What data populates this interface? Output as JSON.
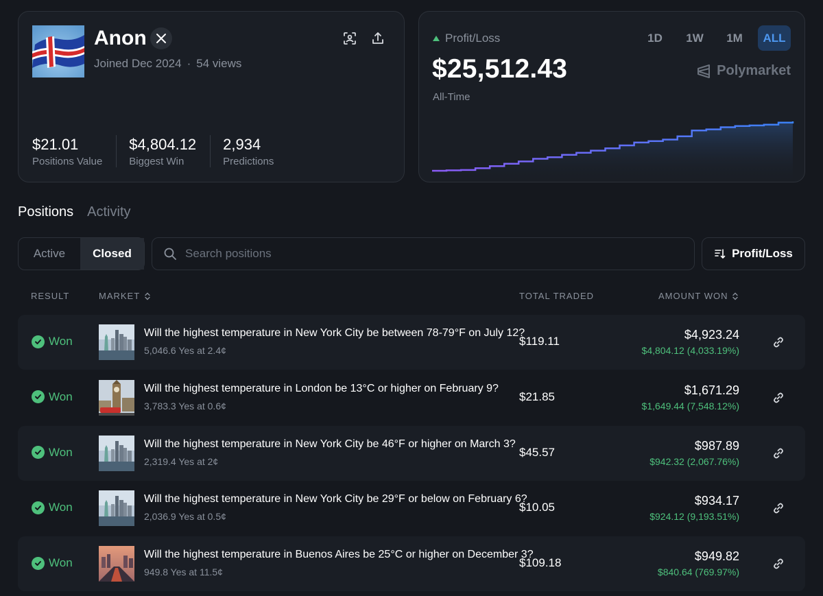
{
  "profile": {
    "name": "Anon",
    "joined": "Joined Dec 2024",
    "separator": "·",
    "views": "54 views",
    "stats": [
      {
        "value": "$21.01",
        "label": "Positions Value"
      },
      {
        "value": "$4,804.12",
        "label": "Biggest Win"
      },
      {
        "value": "2,934",
        "label": "Predictions"
      }
    ]
  },
  "pnl": {
    "label": "Profit/Loss",
    "value": "$25,512.43",
    "period": "All-Time",
    "brand": "Polymarket",
    "ranges": [
      "1D",
      "1W",
      "1M",
      "ALL"
    ],
    "active_range": "ALL",
    "colors": {
      "up": "#4ec07c",
      "line_start": "#8b5cf6",
      "line_end": "#3b82f6"
    },
    "series": [
      0,
      0.2,
      0.4,
      1.3,
      2.4,
      3.6,
      4.8,
      6.2,
      7.0,
      8.2,
      9.3,
      10.4,
      11.6,
      13.1,
      14.6,
      15.3,
      16.1,
      17.8,
      20.8,
      21.4,
      22.5,
      23.1,
      23.4,
      23.8,
      24.9,
      25.5
    ]
  },
  "tabs": {
    "positions": "Positions",
    "activity": "Activity"
  },
  "filters": {
    "active": "Active",
    "closed": "Closed"
  },
  "search": {
    "placeholder": "Search positions"
  },
  "sort": {
    "label": "Profit/Loss"
  },
  "table": {
    "headers": {
      "result": "RESULT",
      "market": "MARKET",
      "total_traded": "TOTAL TRADED",
      "amount_won": "AMOUNT WON"
    },
    "rows": [
      {
        "result": "Won",
        "title": "Will the highest temperature in New York City be between 78-79°F on July 12?",
        "sub": "5,046.6 Yes at 2.4¢",
        "traded": "$119.11",
        "won": "$4,923.24",
        "won_sub": "$4,804.12 (4,033.19%)",
        "thumb": "nyc"
      },
      {
        "result": "Won",
        "title": "Will the highest temperature in London be 13°C or higher on February 9?",
        "sub": "3,783.3 Yes at 0.6¢",
        "traded": "$21.85",
        "won": "$1,671.29",
        "won_sub": "$1,649.44 (7,548.12%)",
        "thumb": "london"
      },
      {
        "result": "Won",
        "title": "Will the highest temperature in New York City be 46°F or higher on March 3?",
        "sub": "2,319.4 Yes at 2¢",
        "traded": "$45.57",
        "won": "$987.89",
        "won_sub": "$942.32 (2,067.76%)",
        "thumb": "nyc"
      },
      {
        "result": "Won",
        "title": "Will the highest temperature in New York City be 29°F or below on February 6?",
        "sub": "2,036.9 Yes at 0.5¢",
        "traded": "$10.05",
        "won": "$934.17",
        "won_sub": "$924.12 (9,193.51%)",
        "thumb": "nyc"
      },
      {
        "result": "Won",
        "title": "Will the highest temperature in Buenos Aires be 25°C or higher on December 3?",
        "sub": "949.8 Yes at 11.5¢",
        "traded": "$109.18",
        "won": "$949.82",
        "won_sub": "$840.64 (769.97%)",
        "thumb": "ba"
      }
    ]
  }
}
